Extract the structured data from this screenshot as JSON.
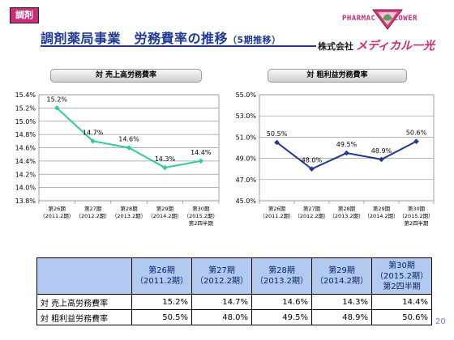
{
  "header": {
    "tag": "調剤",
    "title": "調剤薬局事業　労務費率の推移",
    "title_sub": "（5期推移）"
  },
  "logo": {
    "brand_left": "PHARMAC",
    "brand_right": "LOWER",
    "company_prefix": "株式会社",
    "company_name": "メディカル一光"
  },
  "chart_data": [
    {
      "type": "line",
      "title": "対 売上高労務費率",
      "categories": [
        "第26期\n（2011.2期）",
        "第27期\n（2012.2期）",
        "第28期\n（2013.2期）",
        "第29期\n（2014.2期）",
        "第30期\n（2015.2期）\n第2四半期"
      ],
      "series": [
        {
          "values": [
            15.2,
            14.7,
            14.6,
            14.3,
            14.4
          ]
        }
      ],
      "data_labels": [
        "15.2%",
        "14.7%",
        "14.6%",
        "14.3%",
        "14.4%"
      ],
      "ylim": [
        13.8,
        15.4
      ],
      "yticks": [
        "13.8%",
        "14.0%",
        "14.2%",
        "14.4%",
        "14.6%",
        "14.8%",
        "15.0%",
        "15.2%",
        "15.4%"
      ],
      "grid": true,
      "color": "#2ecc9a"
    },
    {
      "type": "line",
      "title": "対 粗利益労務費率",
      "categories": [
        "第26期\n（2011.2期）",
        "第27期\n（2012.2期）",
        "第28期\n（2013.2期）",
        "第29期\n（2014.2期）",
        "第30期\n（2015.2期）\n第2四半期"
      ],
      "series": [
        {
          "values": [
            50.5,
            48.0,
            49.5,
            48.9,
            50.6
          ]
        }
      ],
      "data_labels": [
        "50.5%",
        "48.0%",
        "49.5%",
        "48.9%",
        "50.6%"
      ],
      "ylim": [
        45.0,
        55.0
      ],
      "yticks": [
        "45.0%",
        "47.0%",
        "49.0%",
        "51.0%",
        "53.0%",
        "55.0%"
      ],
      "grid": true,
      "color": "#1f3a93"
    }
  ],
  "table": {
    "headers": [
      "第26期\n（2011.2期）",
      "第27期\n（2012.2期）",
      "第28期\n（2013.2期）",
      "第29期\n（2014.2期）",
      "第30期\n（2015.2期）\n第2四半期"
    ],
    "rows": [
      {
        "label": "対 売上高労務費率",
        "values": [
          "15.2%",
          "14.7%",
          "14.6%",
          "14.3%",
          "14.4%"
        ]
      },
      {
        "label": "対 粗利益労務費率",
        "values": [
          "50.5%",
          "48.0%",
          "49.5%",
          "48.9%",
          "50.6%"
        ]
      }
    ]
  },
  "page_number": "20"
}
